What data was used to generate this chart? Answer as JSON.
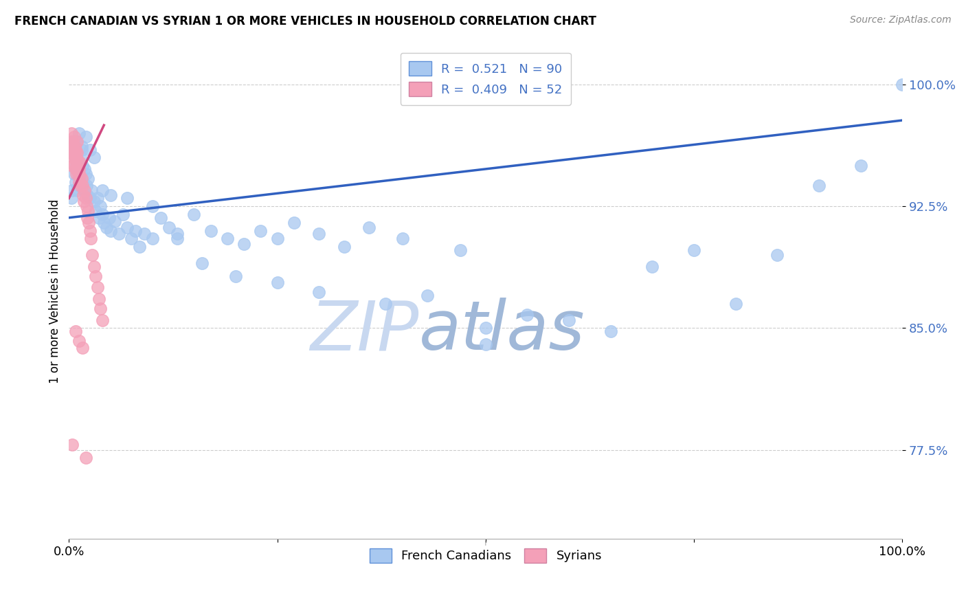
{
  "title": "FRENCH CANADIAN VS SYRIAN 1 OR MORE VEHICLES IN HOUSEHOLD CORRELATION CHART",
  "source": "Source: ZipAtlas.com",
  "ylabel": "1 or more Vehicles in Household",
  "ytick_labels": [
    "100.0%",
    "92.5%",
    "85.0%",
    "77.5%"
  ],
  "ytick_values": [
    1.0,
    0.925,
    0.85,
    0.775
  ],
  "xmin": 0.0,
  "xmax": 1.0,
  "ymin": 0.72,
  "ymax": 1.025,
  "legend_r_blue": "R =  0.521   N = 90",
  "legend_r_pink": "R =  0.409   N = 52",
  "blue_color": "#a8c8f0",
  "pink_color": "#f4a0b8",
  "blue_line_color": "#3060c0",
  "pink_line_color": "#d04880",
  "legend_text_color": "#4472c4",
  "watermark_zip_color": "#c8d8f0",
  "watermark_atlas_color": "#a0b8d8",
  "fc_x": [
    0.003,
    0.004,
    0.005,
    0.006,
    0.007,
    0.008,
    0.009,
    0.01,
    0.011,
    0.012,
    0.013,
    0.014,
    0.015,
    0.016,
    0.017,
    0.018,
    0.019,
    0.02,
    0.021,
    0.022,
    0.023,
    0.025,
    0.027,
    0.03,
    0.032,
    0.034,
    0.036,
    0.038,
    0.04,
    0.042,
    0.045,
    0.048,
    0.05,
    0.055,
    0.06,
    0.065,
    0.07,
    0.075,
    0.08,
    0.085,
    0.09,
    0.1,
    0.11,
    0.12,
    0.13,
    0.15,
    0.17,
    0.19,
    0.21,
    0.23,
    0.25,
    0.27,
    0.3,
    0.33,
    0.36,
    0.4,
    0.43,
    0.47,
    0.5,
    0.55,
    0.6,
    0.65,
    0.7,
    0.75,
    0.8,
    0.85,
    0.9,
    0.95,
    1.0,
    0.004,
    0.005,
    0.007,
    0.009,
    0.012,
    0.015,
    0.02,
    0.025,
    0.03,
    0.04,
    0.05,
    0.07,
    0.1,
    0.13,
    0.16,
    0.2,
    0.25,
    0.3,
    0.38,
    0.5
  ],
  "fc_y": [
    0.93,
    0.935,
    0.96,
    0.945,
    0.955,
    0.94,
    0.95,
    0.935,
    0.945,
    0.938,
    0.942,
    0.955,
    0.96,
    0.95,
    0.94,
    0.935,
    0.948,
    0.945,
    0.938,
    0.932,
    0.942,
    0.93,
    0.935,
    0.928,
    0.922,
    0.93,
    0.918,
    0.925,
    0.92,
    0.915,
    0.912,
    0.918,
    0.91,
    0.916,
    0.908,
    0.92,
    0.912,
    0.905,
    0.91,
    0.9,
    0.908,
    0.905,
    0.918,
    0.912,
    0.908,
    0.92,
    0.91,
    0.905,
    0.902,
    0.91,
    0.905,
    0.915,
    0.908,
    0.9,
    0.912,
    0.905,
    0.87,
    0.898,
    0.85,
    0.858,
    0.855,
    0.848,
    0.888,
    0.898,
    0.865,
    0.895,
    0.938,
    0.95,
    1.0,
    0.96,
    0.965,
    0.958,
    0.965,
    0.97,
    0.962,
    0.968,
    0.96,
    0.955,
    0.935,
    0.932,
    0.93,
    0.925,
    0.905,
    0.89,
    0.882,
    0.878,
    0.872,
    0.865,
    0.84
  ],
  "sy_x": [
    0.001,
    0.002,
    0.002,
    0.003,
    0.003,
    0.004,
    0.004,
    0.005,
    0.005,
    0.006,
    0.006,
    0.006,
    0.007,
    0.007,
    0.008,
    0.008,
    0.009,
    0.009,
    0.01,
    0.01,
    0.01,
    0.011,
    0.011,
    0.012,
    0.012,
    0.013,
    0.013,
    0.014,
    0.015,
    0.016,
    0.017,
    0.018,
    0.019,
    0.02,
    0.021,
    0.022,
    0.023,
    0.024,
    0.025,
    0.026,
    0.028,
    0.03,
    0.032,
    0.034,
    0.036,
    0.038,
    0.04,
    0.008,
    0.012,
    0.016,
    0.004,
    0.02
  ],
  "sy_y": [
    0.96,
    0.965,
    0.958,
    0.97,
    0.962,
    0.958,
    0.95,
    0.965,
    0.955,
    0.968,
    0.958,
    0.95,
    0.962,
    0.955,
    0.96,
    0.948,
    0.955,
    0.945,
    0.965,
    0.958,
    0.95,
    0.952,
    0.945,
    0.948,
    0.94,
    0.952,
    0.944,
    0.938,
    0.942,
    0.938,
    0.932,
    0.928,
    0.935,
    0.93,
    0.925,
    0.918,
    0.922,
    0.915,
    0.91,
    0.905,
    0.895,
    0.888,
    0.882,
    0.875,
    0.868,
    0.862,
    0.855,
    0.848,
    0.842,
    0.838,
    0.778,
    0.77
  ],
  "blue_line_x0": 0.0,
  "blue_line_x1": 1.0,
  "blue_line_y0": 0.918,
  "blue_line_y1": 0.978,
  "pink_line_x0": 0.0,
  "pink_line_x1": 0.042,
  "pink_line_y0": 0.93,
  "pink_line_y1": 0.975
}
